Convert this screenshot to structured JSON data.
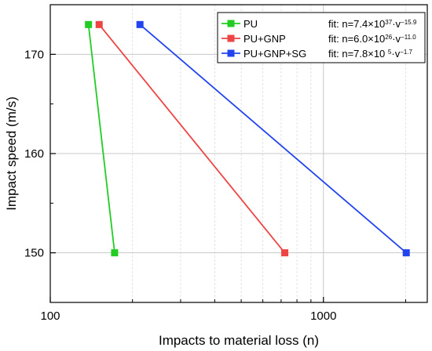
{
  "chart_data": {
    "type": "line",
    "xlabel": "Impacts to material loss (n)",
    "ylabel": "Impact speed (m/s)",
    "xscale": "log",
    "xlim": [
      100,
      2400
    ],
    "ylim": [
      145,
      175
    ],
    "xticks": [
      100,
      1000
    ],
    "xtick_labels": [
      "100",
      "1000"
    ],
    "yticks": [
      150,
      160,
      170
    ],
    "ytick_labels": [
      "150",
      "160",
      "170"
    ],
    "grid": true,
    "legend_position": "top-right",
    "series": [
      {
        "name": "PU",
        "color": "#22cc22",
        "fit": {
          "prefix": "fit: n=7.4",
          "times": "×10",
          "exp": "37",
          "mid": "·v",
          "vexp": "−15.9"
        },
        "points": [
          {
            "x": 138,
            "y": 173
          },
          {
            "x": 172,
            "y": 150
          }
        ]
      },
      {
        "name": "PU+GNP",
        "color": "#ee4444",
        "fit": {
          "prefix": "fit: n=6.0",
          "times": "×10",
          "exp": "26",
          "mid": "·v",
          "vexp": "−11.0"
        },
        "points": [
          {
            "x": 151,
            "y": 173
          },
          {
            "x": 722,
            "y": 150
          }
        ]
      },
      {
        "name": "PU+GNP+SG",
        "color": "#2244ee",
        "fit": {
          "prefix": "fit: n=7.8",
          "times": "×10 ",
          "exp": "5",
          "mid": "·v",
          "vexp": "−1.7"
        },
        "points": [
          {
            "x": 213,
            "y": 173
          },
          {
            "x": 2010,
            "y": 150
          }
        ]
      }
    ]
  }
}
